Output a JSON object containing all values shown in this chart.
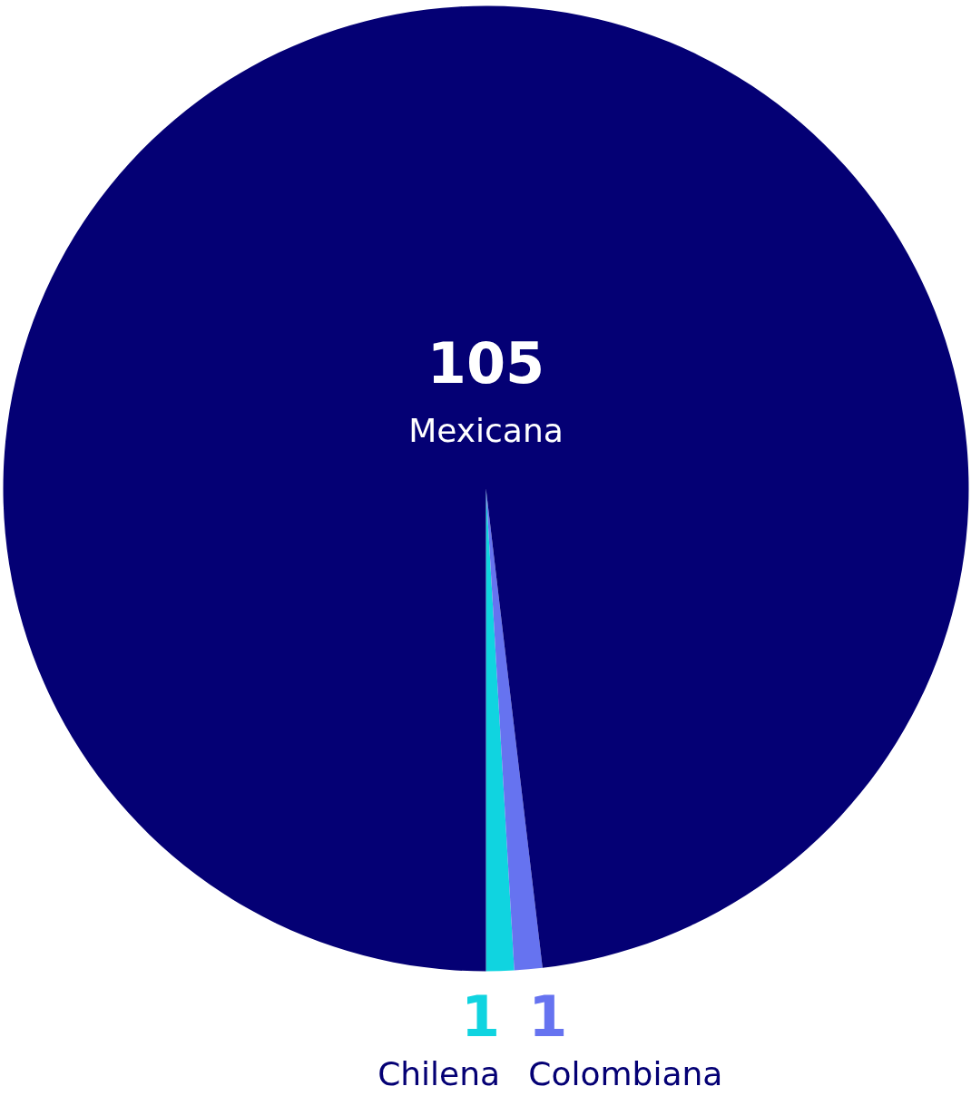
{
  "chart_data": {
    "type": "pie",
    "categories": [
      "Chilena",
      "Colombiana",
      "Mexicana"
    ],
    "values": [
      1,
      1,
      105
    ],
    "colors": [
      "#10d4e0",
      "#6673f0",
      "#040074"
    ],
    "data_labels": true
  }
}
